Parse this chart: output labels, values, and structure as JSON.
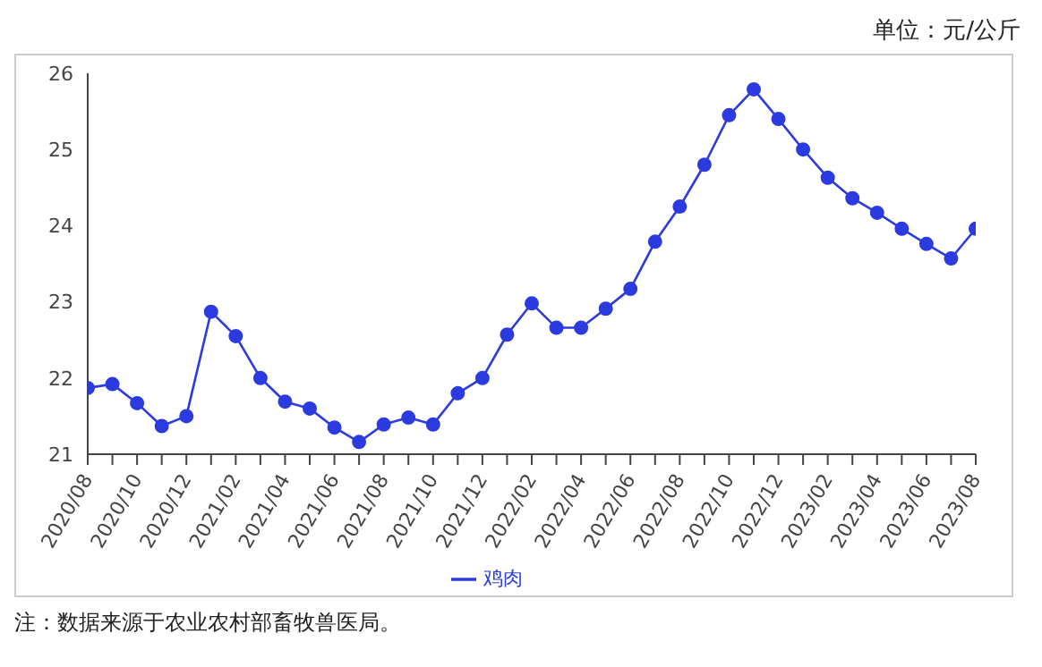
{
  "chart_data": {
    "type": "line",
    "subtitle": "单位：元/公斤",
    "categories": [
      "2020/08",
      null,
      "2020/10",
      null,
      "2020/12",
      null,
      "2021/02",
      null,
      "2021/04",
      null,
      "2021/06",
      null,
      "2021/08",
      null,
      "2021/10",
      null,
      "2021/12",
      null,
      "2022/02",
      null,
      "2022/04",
      null,
      "2022/06",
      null,
      "2022/08",
      null,
      "2022/10",
      null,
      "2022/12",
      null,
      "2023/02",
      null,
      "2023/04",
      null,
      "2023/06",
      null,
      "2023/08"
    ],
    "series": [
      {
        "name": "鸡肉",
        "color": "#2b3be0",
        "values": [
          21.87,
          21.92,
          21.67,
          21.37,
          21.5,
          22.87,
          22.55,
          22.0,
          21.69,
          21.6,
          21.35,
          21.16,
          21.39,
          21.48,
          21.39,
          21.8,
          22.0,
          22.57,
          22.98,
          22.66,
          22.66,
          22.91,
          23.17,
          23.79,
          24.25,
          24.8,
          25.45,
          25.79,
          25.4,
          25.0,
          24.63,
          24.36,
          24.17,
          23.96,
          23.76,
          23.57,
          23.96
        ]
      }
    ],
    "ylim": [
      21,
      26
    ],
    "yticks": [
      21,
      22,
      23,
      24,
      25,
      26
    ],
    "grid": false,
    "legend": "bottom",
    "marker": "circle",
    "line_style": "solid",
    "annotations": [
      "注：数据来源于农业农村部畜牧兽医局。"
    ]
  }
}
